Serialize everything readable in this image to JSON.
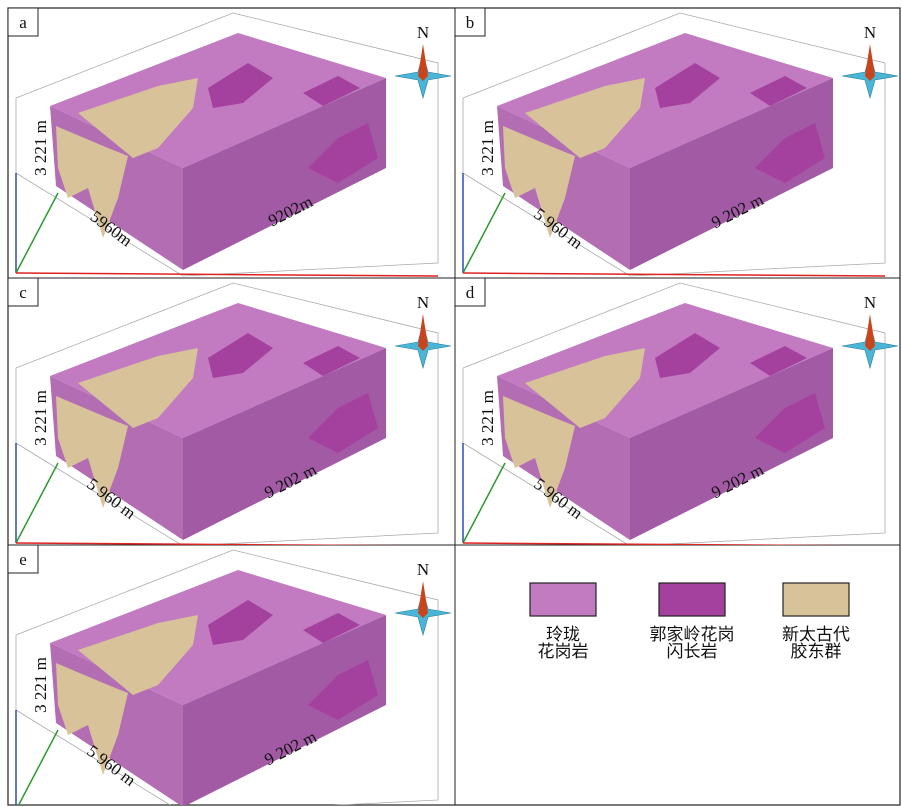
{
  "panels": [
    {
      "label": "a",
      "north": "N",
      "height": "3 221 m",
      "width": "5960m",
      "length": "9202m"
    },
    {
      "label": "b",
      "north": "N",
      "height": "3 221 m",
      "width": "5 960 m",
      "length": "9 202 m"
    },
    {
      "label": "c",
      "north": "N",
      "height": "3 221 m",
      "width": "5 960 m",
      "length": "9 202 m"
    },
    {
      "label": "d",
      "north": "N",
      "height": "3 221 m",
      "width": "5 960 m",
      "length": "9 202 m"
    },
    {
      "label": "e",
      "north": "N",
      "height": "3 221 m",
      "width": "5 960 m",
      "length": "9 202 m"
    }
  ],
  "legend": [
    {
      "color": "#c27bc1",
      "lines": [
        "玲珑",
        "花岗岩"
      ]
    },
    {
      "color": "#a4419e",
      "lines": [
        "郭家岭花岗",
        "闪长岩"
      ]
    },
    {
      "color": "#d8c29a",
      "lines": [
        "新太古代",
        "胶东群"
      ]
    }
  ]
}
